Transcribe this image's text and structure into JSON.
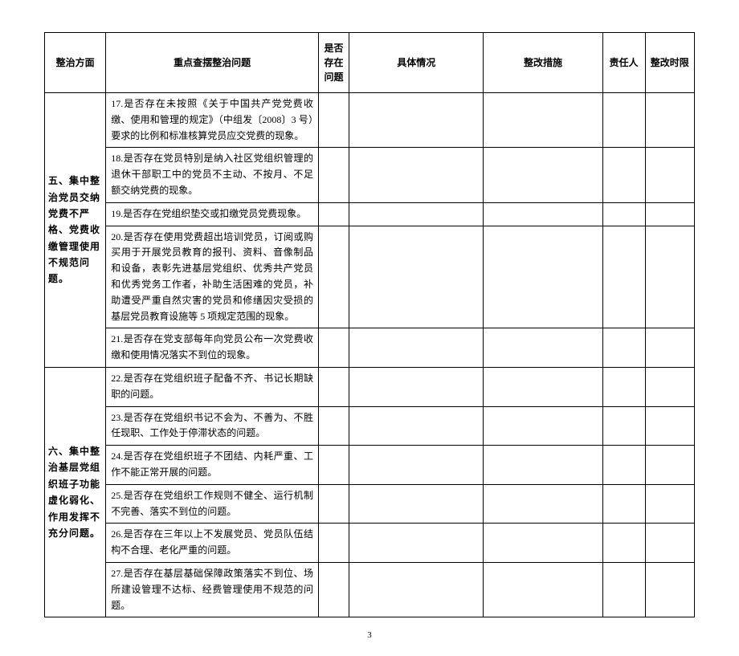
{
  "headers": {
    "aspect": "整治方面",
    "issue": "重点查摆整治问题",
    "exist": "是否存在问题",
    "detail": "具体情况",
    "measure": "整改措施",
    "person": "责任人",
    "time": "整改时限"
  },
  "sections": [
    {
      "aspect": "五、集中整治党员交纳党费不严格、党费收缴管理使用不规范问题。",
      "rows": [
        {
          "issue": "17.是否存在未按照《关于中国共产党党费收缴、使用和管理的规定》（中组发〔2008〕3 号）要求的比例和标准核算党员应交党费的现象。"
        },
        {
          "issue": "18.是否存在党员特别是纳入社区党组织管理的退休干部职工中的党员不主动、不按月、不足额交纳党费的现象。"
        },
        {
          "issue": "19.是否存在党组织垫交或扣缴党员党费现象。"
        },
        {
          "issue": "20.是否存在使用党费超出培训党员，订阅或购买用于开展党员教育的报刊、资料、音像制品和设备，表彰先进基层党组织、优秀共产党员和优秀党务工作者，补助生活困难的党员，补助遭受严重自然灾害的党员和修缮因灾受损的基层党员教育设施等 5 项规定范围的现象。"
        },
        {
          "issue": "21.是否存在党支部每年向党员公布一次党费收缴和使用情况落实不到位的现象。"
        }
      ]
    },
    {
      "aspect": "六、集中整治基层党组织班子功能虚化弱化、作用发挥不充分问题。",
      "rows": [
        {
          "issue": "22.是否存在党组织班子配备不齐、书记长期缺职的问题。"
        },
        {
          "issue": "23.是否存在党组织书记不会为、不善为、不胜任现职、工作处于停滞状态的问题。"
        },
        {
          "issue": "24.是否存在党组织班子不团结、内耗严重、工作不能正常开展的问题。"
        },
        {
          "issue": "25.是否存在党组织工作规则不健全、运行机制不完善、落实不到位的问题。"
        },
        {
          "issue": "26.是否存在三年以上不发展党员、党员队伍结构不合理、老化严重的问题。"
        },
        {
          "issue": "27.是否存在基层基础保障政策落实不到位、场所建设管理不达标、经费管理使用不规范的问题。"
        }
      ]
    }
  ],
  "page": "3",
  "style": {
    "border_color": "#000000",
    "background_color": "#ffffff",
    "text_color": "#000000",
    "base_fontsize": 12
  }
}
